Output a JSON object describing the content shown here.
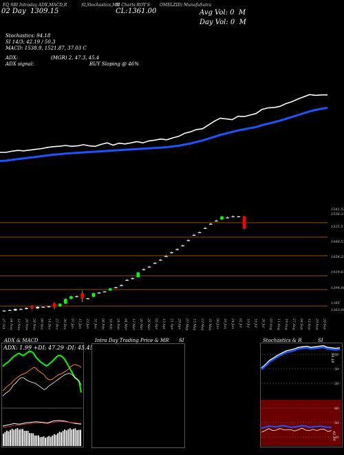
{
  "header": {
    "line1": "EQ SBI Intraday ADX,MACD,R",
    "line1b": "SI,Stochastics,MR",
    "line1c": "SI Charts ROY'S",
    "line1d": "OMELZID) MunafaSutra",
    "date_label": "02 Day",
    "date_value": "1309.15",
    "close_label": "CL:",
    "close_value": "1361.00",
    "avg_vol": "Avg Vol: 0",
    "avg_vol_unit": "M",
    "day_vol": "Day Vol: 0",
    "day_vol_unit": "M"
  },
  "indicators": {
    "stoch": "Stochastics: 94.18",
    "si": "SI 14/3: 42.19 / 50.3",
    "macd": "MACD: 1538.9,  1521.87, 37.03 C",
    "adx": "ADX:",
    "adx_vals": "(MGR) 2, 47.3, 45.4",
    "adx_signal": "ADX  signal:",
    "adx_signal_val": "BUY Sloping @ 46%"
  },
  "price_axis_labels": [
    "1541.51",
    "1538.33",
    "1525.5",
    "1488.53",
    "1454.25",
    "1419.63",
    "1394.80",
    "1385",
    "1363.00"
  ],
  "date_labels": [
    "27 Oct",
    "31 Oct",
    "04 Nov",
    "08 Nov",
    "12 Nov",
    "16 Nov",
    "20 Nov",
    "24 Nov",
    "28 Nov",
    "02 Dec",
    "06 Dec",
    "10 Dec",
    "14 Dec",
    "18 Dec",
    "22 Dec",
    "26 Dec",
    "30 Dec",
    "03 Jan",
    "07 Jan",
    "11 Jan",
    "15 Jan",
    "19 Jan",
    "23 Jan",
    "27 Jan",
    "31 Jan",
    "04 Feb",
    "08 Feb",
    "12 Feb",
    "16 Feb",
    "20 Feb",
    "24 Feb",
    "28 Feb",
    "04 Mar",
    "08 Mar",
    "12 Mar",
    "16 Mar",
    "20 Mar",
    "24 Mar",
    "28 Mar",
    "01 Apr",
    "05 Apr",
    "09 Apr",
    "13 Apr",
    "17 Apr",
    "21 Apr",
    "25 Apr",
    "29 Apr",
    "03 May",
    "07 May",
    "11 May",
    "15 May",
    "19 May",
    "23 May",
    "27 May",
    "31 May",
    "04 Jun",
    "08 Jun",
    "12 Jun",
    "16 Jun",
    "20 Jun",
    "24 Jun",
    "28 Jun",
    "02 Jul",
    "06 Jul",
    "10 Jul",
    "14 Jul",
    "18 Jul",
    "22 Jul",
    "26 Jul",
    "30 Jul",
    "03 Aug",
    "07 Aug",
    "11 Aug",
    "15 Aug",
    "19 Aug",
    "23 Aug",
    "27 Aug",
    "31 Aug",
    "04 Sep",
    "08 Sep",
    "12 Sep",
    "16 Sep",
    "20 Sep",
    "24 Sep",
    "28 Sep",
    "02 Oct"
  ],
  "panels": {
    "adx_title": "ADX  & MACD",
    "adx_values": "ADX: 1.99  +DI: 47.29  -DI: 45.45",
    "mrsi_title": "Intra  Day Trading Price  & MR",
    "mrsi_title2": "SI",
    "stoch_title": "Stochastics & R",
    "stoch_title2": "SI",
    "stoch_ticks": [
      "80",
      "50",
      "20"
    ],
    "stoch_value": "94.18",
    "rsi_ticks": [
      "80",
      "50",
      "20"
    ],
    "rsi_value": "42.19"
  },
  "colors": {
    "up": "#00ff00",
    "down": "#ff0000",
    "ma": "#1a56ff",
    "price": "#ffffff",
    "adx_panel": "#6b0000"
  },
  "chart_data": [
    {
      "type": "line",
      "title": "",
      "series": [
        {
          "values": [
            1380,
            1380,
            1383,
            1385,
            1384,
            1386,
            1388,
            1390,
            1393,
            1395,
            1396,
            1398,
            1396,
            1397,
            1400,
            1397,
            1396,
            1401,
            1405,
            1399,
            1404,
            1402,
            1405,
            1408,
            1405,
            1410,
            1412,
            1415,
            1413,
            1418,
            1422,
            1430,
            1434,
            1440,
            1442,
            1452,
            1462,
            1470,
            1468,
            1466,
            1475,
            1474,
            1478,
            1482,
            1493,
            1497,
            1498,
            1501,
            1508,
            1513,
            1520,
            1526,
            1532,
            1530,
            1531,
            1531
          ]
        },
        {
          "values": [
            1372,
            1373,
            1375,
            1377,
            1379,
            1381,
            1383,
            1385,
            1387,
            1389,
            1390,
            1392,
            1393,
            1394,
            1395,
            1396,
            1397,
            1398,
            1399,
            1400,
            1401,
            1402,
            1403,
            1404,
            1405,
            1406,
            1407,
            1408,
            1409,
            1411,
            1413,
            1416,
            1419,
            1423,
            1427,
            1432,
            1437,
            1442,
            1446,
            1450,
            1454,
            1457,
            1460,
            1463,
            1468,
            1472,
            1476,
            1480,
            1485,
            1490,
            1495,
            1500,
            1505,
            1509,
            1512,
            1515
          ]
        }
      ]
    },
    {
      "type": "bar",
      "title": "",
      "candles": [
        [
          1362,
          1363,
          1361,
          1362
        ],
        [
          1363,
          1364,
          1362,
          1363
        ],
        [
          1362,
          1366,
          1361,
          1365
        ],
        [
          1365,
          1366,
          1364,
          1365
        ],
        [
          1365,
          1368,
          1364,
          1367
        ],
        [
          1371,
          1372,
          1364,
          1366
        ],
        [
          1366,
          1370,
          1365,
          1369
        ],
        [
          1369,
          1370,
          1368,
          1369
        ],
        [
          1370,
          1371,
          1368,
          1370
        ],
        [
          1376,
          1378,
          1364,
          1368
        ],
        [
          1370,
          1376,
          1369,
          1375
        ],
        [
          1375,
          1385,
          1374,
          1384
        ],
        [
          1384,
          1390,
          1383,
          1389
        ],
        [
          1389,
          1391,
          1387,
          1389
        ],
        [
          1395,
          1400,
          1378,
          1385
        ],
        [
          1385,
          1386,
          1384,
          1385
        ],
        [
          1388,
          1396,
          1387,
          1395
        ],
        [
          1395,
          1397,
          1393,
          1396
        ],
        [
          1398,
          1399,
          1397,
          1398
        ],
        [
          1400,
          1405,
          1399,
          1404
        ],
        [
          1405,
          1407,
          1404,
          1406
        ],
        [
          1410,
          1412,
          1408,
          1410
        ],
        [
          1420,
          1422,
          1418,
          1420
        ],
        [
          1423,
          1425,
          1421,
          1423
        ],
        [
          1425,
          1435,
          1424,
          1434
        ],
        [
          1440,
          1442,
          1438,
          1440
        ],
        [
          1445,
          1447,
          1443,
          1445
        ],
        [
          1452,
          1454,
          1450,
          1452
        ],
        [
          1458,
          1460,
          1456,
          1458
        ],
        [
          1465,
          1467,
          1463,
          1465
        ],
        [
          1472,
          1474,
          1470,
          1472
        ],
        [
          1478,
          1480,
          1476,
          1478
        ],
        [
          1485,
          1487,
          1483,
          1485
        ],
        [
          1495,
          1497,
          1493,
          1495
        ],
        [
          1505,
          1507,
          1503,
          1505
        ],
        [
          1510,
          1512,
          1508,
          1510
        ],
        [
          1518,
          1520,
          1516,
          1518
        ],
        [
          1526,
          1528,
          1524,
          1526
        ],
        [
          1532,
          1534,
          1530,
          1532
        ],
        [
          1534,
          1541,
          1533,
          1540
        ],
        [
          1538,
          1540,
          1536,
          1538
        ],
        [
          1540,
          1542,
          1538,
          1540
        ],
        [
          1540,
          1541,
          1538,
          1539
        ],
        [
          1540,
          1541,
          1515,
          1517
        ]
      ]
    },
    {
      "type": "line",
      "title": "",
      "series": [
        {
          "values": [
            45,
            48,
            50,
            52,
            55,
            58,
            60,
            62,
            63,
            61,
            60,
            62,
            64,
            66,
            65,
            63,
            58,
            55,
            52,
            50,
            48,
            46,
            47,
            50,
            52,
            55,
            58,
            60,
            60,
            58,
            55,
            50,
            45,
            40,
            35,
            30,
            28,
            25,
            10
          ]
        },
        {
          "values": [
            12,
            15,
            18,
            20,
            22,
            25,
            28,
            30,
            32,
            34,
            35,
            36,
            38,
            40,
            42,
            44,
            43,
            40,
            38,
            36,
            34,
            30,
            28,
            27,
            28,
            30,
            32,
            34,
            35,
            36,
            38,
            40,
            42,
            45,
            47,
            48,
            47,
            46,
            44
          ]
        },
        {
          "values": [
            5,
            8,
            10,
            12,
            15,
            20,
            22,
            25,
            28,
            30,
            30,
            28,
            26,
            25,
            24,
            23,
            22,
            20,
            18,
            16,
            14,
            15,
            18,
            20,
            22,
            24,
            26,
            28,
            30,
            32,
            34,
            35,
            36,
            35,
            33,
            30,
            28,
            25,
            20
          ]
        }
      ]
    },
    {
      "type": "line",
      "title": "",
      "series": [
        {
          "values": [
            55,
            62,
            70,
            75,
            80,
            84,
            88,
            90,
            92,
            95,
            96,
            97,
            95,
            96,
            97,
            98,
            95,
            94,
            93,
            94
          ]
        },
        {
          "values": [
            40,
            42,
            45,
            44,
            43,
            45,
            46,
            44,
            42,
            43,
            44,
            46,
            45,
            42,
            43,
            44,
            45,
            43,
            42,
            42
          ]
        }
      ]
    }
  ]
}
